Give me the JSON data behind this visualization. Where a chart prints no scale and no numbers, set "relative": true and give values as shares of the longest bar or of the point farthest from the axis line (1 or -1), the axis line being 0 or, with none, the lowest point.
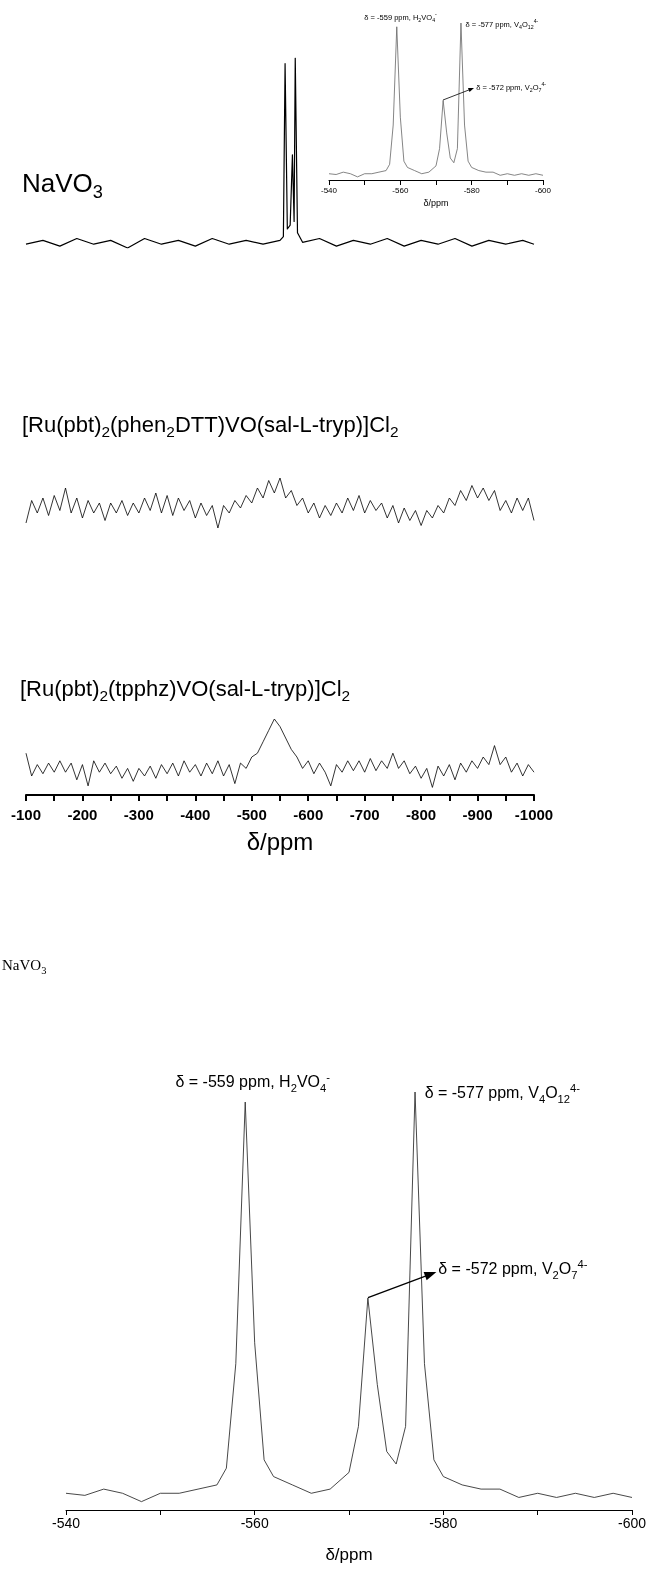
{
  "chart_data": [
    {
      "type": "line",
      "title": "NaVO$_{3}$",
      "relative": true,
      "color": "#000000",
      "xlim": [
        -100,
        -1000
      ],
      "tick_labels": false,
      "x": [
        -100,
        -130,
        -160,
        -190,
        -220,
        -250,
        -280,
        -310,
        -340,
        -370,
        -400,
        -430,
        -460,
        -490,
        -520,
        -550,
        -556,
        -559,
        -563,
        -568,
        -572,
        -575,
        -577,
        -581,
        -590,
        -620,
        -650,
        -680,
        -710,
        -740,
        -770,
        -800,
        -830,
        -860,
        -890,
        -920,
        -950,
        -980,
        -1000
      ],
      "values": [
        0.02,
        0.04,
        0.01,
        0.05,
        0.02,
        0.04,
        0.0,
        0.05,
        0.02,
        0.04,
        0.01,
        0.05,
        0.02,
        0.04,
        0.02,
        0.04,
        0.06,
        0.97,
        0.1,
        0.12,
        0.49,
        0.14,
        1.0,
        0.08,
        0.03,
        0.05,
        0.01,
        0.04,
        0.02,
        0.05,
        0.01,
        0.04,
        0.02,
        0.05,
        0.01,
        0.04,
        0.02,
        0.04,
        0.02
      ]
    },
    {
      "type": "line",
      "relative": true,
      "color": "#666666",
      "xlim": [
        -540,
        -600
      ],
      "xlabel": "δ/ppm",
      "xticks": [
        -540,
        {
          "value": -550,
          "label": null
        },
        -560,
        {
          "value": -570,
          "label": null
        },
        -580,
        {
          "value": -590,
          "label": null
        },
        -600
      ],
      "annotations": [
        {
          "text": "δ = -559 ppm, H$_{2}$VO$_{4}$$^{-}$",
          "x": -559,
          "y": 0.976
        },
        {
          "text": "δ = -577 ppm, V$_{4}$O$_{12}$$^{4-}$",
          "x": -577,
          "y": 1.0
        },
        {
          "text": "δ = -572 ppm, V$_{2}$O$_{7}$$^{4-}$",
          "x": -572,
          "y": 0.507
        }
      ],
      "x": [
        -540,
        -542,
        -544,
        -546,
        -548,
        -550,
        -552,
        -554,
        -556,
        -557,
        -558,
        -559,
        -560,
        -561,
        -562,
        -564,
        -566,
        -568,
        -570,
        -571,
        -572,
        -573,
        -574,
        -575,
        -576,
        -577,
        -578,
        -579,
        -580,
        -582,
        -584,
        -586,
        -588,
        -590,
        -592,
        -594,
        -596,
        -598,
        -600
      ],
      "values": [
        0.04,
        0.035,
        0.05,
        0.04,
        0.02,
        0.04,
        0.04,
        0.05,
        0.06,
        0.1,
        0.35,
        0.976,
        0.4,
        0.12,
        0.08,
        0.06,
        0.04,
        0.05,
        0.09,
        0.2,
        0.507,
        0.3,
        0.14,
        0.11,
        0.2,
        1.0,
        0.35,
        0.12,
        0.08,
        0.06,
        0.05,
        0.05,
        0.03,
        0.04,
        0.03,
        0.04,
        0.03,
        0.04,
        0.03
      ]
    },
    {
      "type": "line",
      "title": "[Ru(pbt)$_{2}$(phen$_{2}$DTT)VO(sal-L-tryp)]Cl$_{2}$",
      "relative": true,
      "color": "#000000",
      "xlim": [
        -100,
        -1000
      ],
      "tick_labels": false,
      "x": [
        -100,
        -110,
        -120,
        -130,
        -140,
        -150,
        -160,
        -170,
        -180,
        -190,
        -200,
        -210,
        -220,
        -230,
        -240,
        -250,
        -260,
        -270,
        -280,
        -290,
        -300,
        -310,
        -320,
        -330,
        -340,
        -350,
        -360,
        -370,
        -380,
        -390,
        -400,
        -410,
        -420,
        -430,
        -440,
        -450,
        -460,
        -470,
        -480,
        -490,
        -500,
        -510,
        -520,
        -530,
        -540,
        -550,
        -560,
        -570,
        -580,
        -590,
        -600,
        -610,
        -620,
        -630,
        -640,
        -650,
        -660,
        -670,
        -680,
        -690,
        -700,
        -710,
        -720,
        -730,
        -740,
        -750,
        -760,
        -770,
        -780,
        -790,
        -800,
        -810,
        -820,
        -830,
        -840,
        -850,
        -860,
        -870,
        -880,
        -890,
        -900,
        -910,
        -920,
        -930,
        -940,
        -950,
        -960,
        -970,
        -980,
        -990,
        -1000
      ],
      "values": [
        0.1,
        0.55,
        0.3,
        0.6,
        0.25,
        0.65,
        0.35,
        0.8,
        0.3,
        0.6,
        0.2,
        0.55,
        0.3,
        0.5,
        0.15,
        0.5,
        0.3,
        0.55,
        0.25,
        0.5,
        0.3,
        0.6,
        0.35,
        0.7,
        0.3,
        0.65,
        0.25,
        0.6,
        0.35,
        0.55,
        0.2,
        0.5,
        0.25,
        0.45,
        0.0,
        0.45,
        0.3,
        0.55,
        0.4,
        0.65,
        0.5,
        0.8,
        0.6,
        0.95,
        0.7,
        1.0,
        0.6,
        0.75,
        0.45,
        0.6,
        0.3,
        0.5,
        0.2,
        0.45,
        0.25,
        0.5,
        0.3,
        0.6,
        0.35,
        0.65,
        0.3,
        0.55,
        0.35,
        0.5,
        0.2,
        0.45,
        0.1,
        0.4,
        0.15,
        0.35,
        0.05,
        0.35,
        0.2,
        0.45,
        0.3,
        0.6,
        0.45,
        0.75,
        0.55,
        0.85,
        0.6,
        0.8,
        0.55,
        0.75,
        0.35,
        0.55,
        0.3,
        0.6,
        0.35,
        0.6,
        0.15
      ]
    },
    {
      "type": "line",
      "title": "[Ru(pbt)$_{2}$(tpphz)VO(sal-L-tryp)]Cl$_{2}$",
      "relative": true,
      "color": "#000000",
      "xlim": [
        -100,
        -1000
      ],
      "xlabel": "δ/ppm",
      "xticks": [
        -100,
        {
          "value": -150,
          "label": null
        },
        -200,
        {
          "value": -250,
          "label": null
        },
        -300,
        {
          "value": -350,
          "label": null
        },
        -400,
        {
          "value": -450,
          "label": null
        },
        -500,
        {
          "value": -550,
          "label": null
        },
        -600,
        {
          "value": -650,
          "label": null
        },
        -700,
        {
          "value": -750,
          "label": null
        },
        -800,
        {
          "value": -850,
          "label": null
        },
        -900,
        {
          "value": -950,
          "label": null
        },
        -1000
      ],
      "x": [
        -100,
        -110,
        -120,
        -130,
        -140,
        -150,
        -160,
        -170,
        -180,
        -190,
        -200,
        -210,
        -220,
        -230,
        -240,
        -250,
        -260,
        -270,
        -280,
        -290,
        -300,
        -310,
        -320,
        -330,
        -340,
        -350,
        -360,
        -370,
        -380,
        -390,
        -400,
        -410,
        -420,
        -430,
        -440,
        -450,
        -460,
        -470,
        -480,
        -490,
        -500,
        -510,
        -520,
        -530,
        -540,
        -550,
        -560,
        -570,
        -580,
        -590,
        -600,
        -610,
        -620,
        -630,
        -640,
        -650,
        -660,
        -670,
        -680,
        -690,
        -700,
        -710,
        -720,
        -730,
        -740,
        -750,
        -760,
        -770,
        -780,
        -790,
        -800,
        -810,
        -820,
        -830,
        -840,
        -850,
        -860,
        -870,
        -880,
        -890,
        -900,
        -910,
        -920,
        -930,
        -940,
        -950,
        -960,
        -970,
        -980,
        -990,
        -1000
      ],
      "values": [
        0.55,
        0.25,
        0.4,
        0.28,
        0.42,
        0.3,
        0.45,
        0.3,
        0.42,
        0.2,
        0.4,
        0.12,
        0.45,
        0.3,
        0.42,
        0.28,
        0.38,
        0.22,
        0.35,
        0.18,
        0.35,
        0.25,
        0.38,
        0.22,
        0.4,
        0.28,
        0.42,
        0.25,
        0.45,
        0.3,
        0.4,
        0.25,
        0.42,
        0.28,
        0.45,
        0.25,
        0.4,
        0.15,
        0.42,
        0.35,
        0.5,
        0.55,
        0.7,
        0.85,
        1.0,
        0.9,
        0.75,
        0.6,
        0.5,
        0.35,
        0.45,
        0.28,
        0.42,
        0.3,
        0.12,
        0.4,
        0.3,
        0.45,
        0.32,
        0.45,
        0.3,
        0.48,
        0.32,
        0.45,
        0.35,
        0.55,
        0.35,
        0.45,
        0.28,
        0.38,
        0.22,
        0.35,
        0.1,
        0.38,
        0.25,
        0.4,
        0.2,
        0.42,
        0.3,
        0.45,
        0.35,
        0.5,
        0.4,
        0.65,
        0.4,
        0.5,
        0.3,
        0.42,
        0.25,
        0.4,
        0.3
      ]
    },
    {
      "type": "line",
      "title": "NaVO$_{3}$",
      "relative": true,
      "color": "#333333",
      "xlim": [
        -540,
        -600
      ],
      "xlabel": "δ/ppm",
      "xticks": [
        -540,
        {
          "value": -550,
          "label": null
        },
        -560,
        {
          "value": -570,
          "label": null
        },
        -580,
        {
          "value": -590,
          "label": null
        },
        -600
      ],
      "annotations": [
        {
          "text": "δ = -559 ppm, H$_{2}$VO$_{4}$$^{-}$",
          "x": -559,
          "y": 0.976
        },
        {
          "text": "δ = -577 ppm, V$_{4}$O$_{12}$$^{4-}$",
          "x": -577,
          "y": 1.0
        },
        {
          "text": "δ = -572 ppm, V$_{2}$O$_{7}$$^{4-}$",
          "x": -572,
          "y": 0.507
        }
      ],
      "x": [
        -540,
        -542,
        -544,
        -546,
        -548,
        -550,
        -552,
        -554,
        -556,
        -557,
        -558,
        -559,
        -560,
        -561,
        -562,
        -564,
        -566,
        -568,
        -570,
        -571,
        -572,
        -573,
        -574,
        -575,
        -576,
        -577,
        -578,
        -579,
        -580,
        -582,
        -584,
        -586,
        -588,
        -590,
        -592,
        -594,
        -596,
        -598,
        -600
      ],
      "values": [
        0.04,
        0.035,
        0.05,
        0.04,
        0.02,
        0.04,
        0.04,
        0.05,
        0.06,
        0.1,
        0.35,
        0.976,
        0.4,
        0.12,
        0.08,
        0.06,
        0.04,
        0.05,
        0.09,
        0.2,
        0.507,
        0.3,
        0.14,
        0.11,
        0.2,
        1.0,
        0.35,
        0.12,
        0.08,
        0.06,
        0.05,
        0.05,
        0.03,
        0.04,
        0.03,
        0.04,
        0.03,
        0.04,
        0.03
      ]
    }
  ]
}
